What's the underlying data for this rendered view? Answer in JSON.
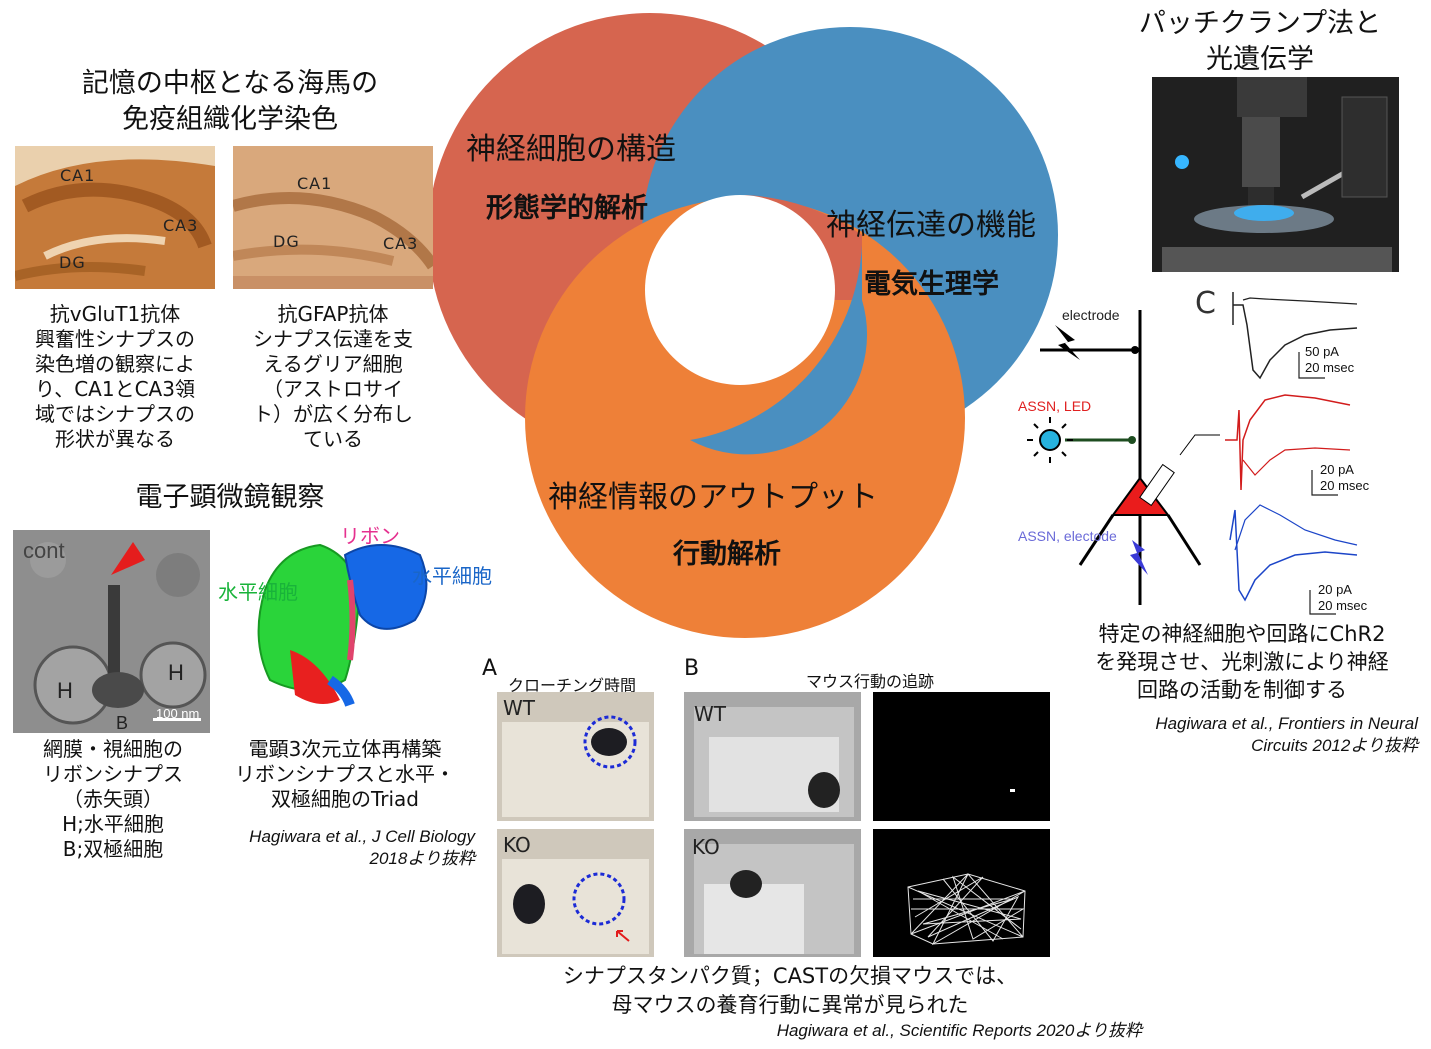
{
  "venn": {
    "structure_label": "神経細胞の構造",
    "structure_method": "形態学的解析",
    "function_label": "神経伝達の機能",
    "function_method": "電気生理学",
    "output_label": "神経情報のアウトプット",
    "output_method": "行動解析",
    "colors": {
      "structure": "#d6654f",
      "function": "#4a8fc0",
      "output": "#ee8038"
    }
  },
  "hippocampus": {
    "title_line1": "記憶の中枢となる海馬の",
    "title_line2": "免疫組織化学染色",
    "image1_labels": {
      "ca1": "CA1",
      "ca3": "CA3",
      "dg": "DG"
    },
    "image2_labels": {
      "ca1": "CA1",
      "ca3": "CA3",
      "dg": "DG"
    },
    "caption1": [
      "抗vGluT1抗体",
      "興奮性シナプスの",
      "染色増の観察によ",
      "り、CA1とCA3領",
      "域ではシナプスの",
      "形状が異なる"
    ],
    "caption2": [
      "抗GFAP抗体",
      "シナプス伝達を支",
      "えるグリア細胞",
      "（アストロサイ",
      "ト）が広く分布し",
      "ている"
    ]
  },
  "em": {
    "title": "電子顕微鏡観察",
    "image_labels": {
      "cont": "cont",
      "h_left": "H",
      "h_right": "H",
      "b": "B",
      "scale": "100 nm"
    },
    "recon_labels": {
      "ribbon": "リボン",
      "horizontal_left": "水平細胞",
      "horizontal_right": "水平細胞"
    },
    "caption1": [
      "網膜・視細胞の",
      "リボンシナプス",
      "（赤矢頭）",
      "H;水平細胞",
      "B;双極細胞"
    ],
    "caption2": [
      "電顕3次元立体再構築",
      "リボンシナプスと水平・",
      "双極細胞のTriad"
    ],
    "citation_line1": "Hagiwara et al., J Cell Biology",
    "citation_line2": "2018より抜粋"
  },
  "patch": {
    "title_line1": "パッチクランプ法と",
    "title_line2": "光遺伝学",
    "panel_letter": "C",
    "electrode_label": "electrode",
    "led_label": "ASSN, LED",
    "assn_electrode_label": "ASSN, electode",
    "scale1": [
      "50 pA",
      "20 msec"
    ],
    "scale2": [
      "20 pA",
      "20 msec"
    ],
    "scale3": [
      "20 pA",
      "20 msec"
    ],
    "caption": [
      "特定の神経細胞や回路にChR2",
      "を発現させ、光刺激により神経",
      "回路の活動を制御する"
    ],
    "citation_line1": "Hagiwara et al., Frontiers in Neural",
    "citation_line2": "Circuits 2012より抜粋"
  },
  "behavior": {
    "panel_a": "A",
    "panel_a_title": "クローチング時間",
    "panel_b": "B",
    "panel_b_title": "マウス行動の追跡",
    "wt": "WT",
    "ko": "KO",
    "caption_line1": "シナプスタンパク質；CASTの欠損マウスでは、",
    "caption_line2": "母マウスの養育行動に異常が見られた",
    "citation": "Hagiwara et al., Scientific Reports 2020より抜粋"
  }
}
